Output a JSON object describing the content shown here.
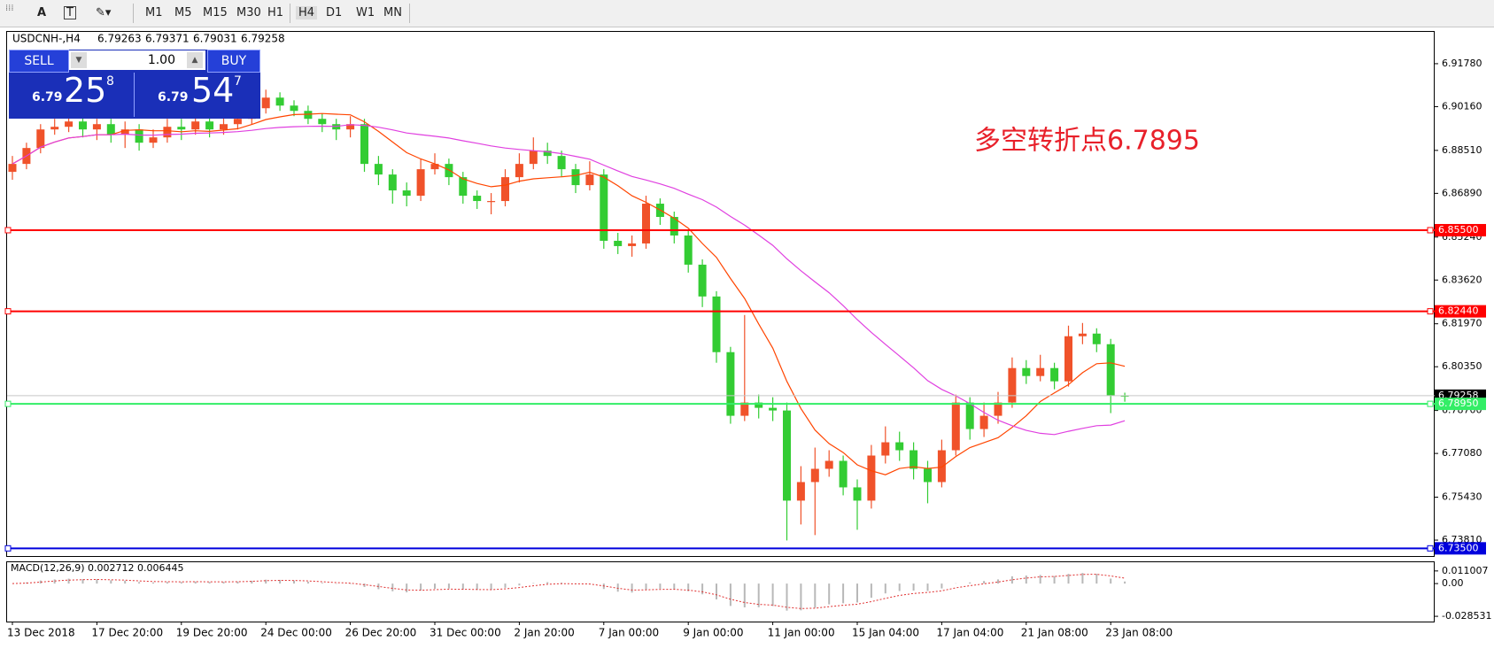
{
  "toolbar": {
    "items": [
      "A",
      "M1",
      "M5",
      "M15",
      "M30",
      "H1",
      "H4",
      "D1",
      "W1",
      "MN"
    ]
  },
  "trade_panel": {
    "sell": "SELL",
    "lots": "1.00",
    "buy": "BUY",
    "bid_big": "6.79",
    "bid_pips": "25",
    "bid_frac": "8",
    "ask_big": "6.79",
    "ask_pips": "54",
    "ask_frac": "7"
  },
  "chart_data": {
    "type": "candlestick",
    "title": "USDCNH-,H4",
    "annotation": "多空转折点6.7895",
    "up_color": "#f0522a",
    "down_color": "#33cc33",
    "fast_ma_color": "#ff4500",
    "slow_ma_color": "#e040e0",
    "categories": [
      "13 Dec 2018",
      null,
      null,
      null,
      null,
      null,
      "17 Dec 20:00",
      null,
      null,
      null,
      null,
      null,
      "19 Dec 20:00",
      null,
      null,
      null,
      null,
      null,
      "24 Dec 00:00",
      null,
      null,
      null,
      null,
      null,
      "26 Dec 20:00",
      null,
      null,
      null,
      null,
      null,
      "31 Dec 00:00",
      null,
      null,
      null,
      null,
      null,
      "2 Jan 20:00",
      null,
      null,
      null,
      null,
      null,
      "7 Jan 00:00",
      null,
      null,
      null,
      null,
      null,
      "9 Jan 00:00",
      null,
      null,
      null,
      null,
      null,
      "11 Jan 00:00",
      null,
      null,
      null,
      null,
      null,
      "15 Jan 04:00",
      null,
      null,
      null,
      null,
      null,
      "17 Jan 04:00",
      null,
      null,
      null,
      null,
      null,
      "21 Jan 08:00",
      null,
      null,
      null,
      null,
      null,
      "23 Jan 08:00",
      null
    ],
    "open": [
      6.877,
      6.88,
      6.886,
      6.893,
      6.894,
      6.896,
      6.893,
      6.895,
      6.891,
      6.893,
      6.888,
      6.89,
      6.894,
      6.893,
      6.896,
      6.893,
      6.895,
      6.897,
      6.901,
      6.905,
      6.902,
      6.9,
      6.897,
      6.895,
      6.893,
      6.895,
      6.88,
      6.876,
      6.87,
      6.868,
      6.878,
      6.88,
      6.875,
      6.868,
      6.866,
      6.866,
      6.875,
      6.88,
      6.885,
      6.883,
      6.878,
      6.872,
      6.876,
      6.851,
      6.849,
      6.85,
      6.865,
      6.86,
      6.853,
      6.842,
      6.83,
      6.809,
      6.785,
      6.79,
      6.788,
      6.787,
      6.753,
      6.76,
      6.765,
      6.768,
      6.758,
      6.753,
      6.77,
      6.775,
      6.772,
      6.765,
      6.76,
      6.772,
      6.79,
      6.78,
      6.785,
      6.79,
      6.803,
      6.8,
      6.803,
      6.798,
      6.815,
      6.816,
      6.812,
      6.79263
    ],
    "high": [
      6.883,
      6.888,
      6.895,
      6.897,
      6.898,
      6.898,
      6.897,
      6.897,
      6.896,
      6.895,
      6.893,
      6.897,
      6.897,
      6.899,
      6.898,
      6.898,
      6.9,
      6.904,
      6.908,
      6.907,
      6.904,
      6.902,
      6.899,
      6.897,
      6.898,
      6.897,
      6.883,
      6.878,
      6.873,
      6.882,
      6.884,
      6.882,
      6.877,
      6.87,
      6.869,
      6.878,
      6.884,
      6.89,
      6.888,
      6.885,
      6.88,
      6.881,
      6.878,
      6.854,
      6.853,
      6.868,
      6.867,
      6.862,
      6.855,
      6.844,
      6.832,
      6.811,
      6.823,
      6.793,
      6.792,
      6.79,
      6.766,
      6.773,
      6.772,
      6.77,
      6.761,
      6.774,
      6.781,
      6.779,
      6.775,
      6.768,
      6.776,
      6.793,
      6.792,
      6.79,
      6.794,
      6.807,
      6.806,
      6.808,
      6.805,
      6.819,
      6.82,
      6.818,
      6.814,
      6.79371
    ],
    "low": [
      6.874,
      6.878,
      6.884,
      6.891,
      6.892,
      6.89,
      6.889,
      6.888,
      6.886,
      6.885,
      6.886,
      6.888,
      6.889,
      6.891,
      6.89,
      6.891,
      6.893,
      6.895,
      6.899,
      6.9,
      6.898,
      6.895,
      6.892,
      6.889,
      6.89,
      6.877,
      6.872,
      6.865,
      6.864,
      6.866,
      6.876,
      6.872,
      6.865,
      6.863,
      6.861,
      6.864,
      6.873,
      6.878,
      6.88,
      6.875,
      6.869,
      6.87,
      6.848,
      6.846,
      6.845,
      6.848,
      6.857,
      6.85,
      6.839,
      6.826,
      6.805,
      6.782,
      6.783,
      6.784,
      6.783,
      6.738,
      6.744,
      6.74,
      6.762,
      6.755,
      6.742,
      6.75,
      6.767,
      6.768,
      6.761,
      6.752,
      6.758,
      6.77,
      6.776,
      6.777,
      6.782,
      6.788,
      6.797,
      6.798,
      6.795,
      6.796,
      6.812,
      6.809,
      6.786,
      6.79031
    ],
    "close": [
      6.88,
      6.886,
      6.893,
      6.894,
      6.896,
      6.893,
      6.895,
      6.891,
      6.893,
      6.888,
      6.89,
      6.894,
      6.893,
      6.896,
      6.893,
      6.895,
      6.897,
      6.901,
      6.905,
      6.902,
      6.9,
      6.897,
      6.895,
      6.893,
      6.895,
      6.88,
      6.876,
      6.87,
      6.868,
      6.878,
      6.88,
      6.875,
      6.868,
      6.866,
      6.866,
      6.875,
      6.88,
      6.885,
      6.883,
      6.878,
      6.872,
      6.876,
      6.851,
      6.849,
      6.85,
      6.865,
      6.86,
      6.853,
      6.842,
      6.83,
      6.809,
      6.785,
      6.79,
      6.788,
      6.787,
      6.753,
      6.76,
      6.765,
      6.768,
      6.758,
      6.753,
      6.77,
      6.775,
      6.772,
      6.765,
      6.76,
      6.772,
      6.79,
      6.78,
      6.785,
      6.79,
      6.803,
      6.8,
      6.803,
      6.798,
      6.815,
      6.816,
      6.812,
      6.79263,
      6.79258
    ],
    "ylim": [
      6.7321,
      6.9298
    ],
    "yticks": [
      {
        "value": 6.9178,
        "label": "6.91780"
      },
      {
        "value": 6.9016,
        "label": "6.90160"
      },
      {
        "value": 6.8851,
        "label": "6.88510"
      },
      {
        "value": 6.8689,
        "label": "6.86890"
      },
      {
        "value": 6.8524,
        "label": "6.85240"
      },
      {
        "value": 6.8362,
        "label": "6.83620"
      },
      {
        "value": 6.8197,
        "label": "6.81970"
      },
      {
        "value": 6.8035,
        "label": "6.80350"
      },
      {
        "value": 6.787,
        "label": "6.78700"
      },
      {
        "value": 6.7708,
        "label": "6.77080"
      },
      {
        "value": 6.7543,
        "label": "6.75430"
      },
      {
        "value": 6.7381,
        "label": "6.73810"
      }
    ],
    "hlines": [
      {
        "value": 6.855,
        "label": "6.85500",
        "color": "#ff0000"
      },
      {
        "value": 6.8244,
        "label": "6.82440",
        "color": "#ff0000"
      },
      {
        "value": 6.79258,
        "label": "6.79258",
        "color": "#000000"
      },
      {
        "value": 6.7895,
        "label": "6.78950",
        "color": "#33ee66"
      },
      {
        "value": 6.735,
        "label": "6.73500",
        "color": "#0000dd"
      }
    ],
    "macd_label": "MACD(12,26,9) 0.002712 0.006445",
    "macd_ylim": [
      -0.0331,
      0.0186
    ],
    "macd_yticks": [
      0.011007,
      {
        "value": 0,
        "label": "0.00"
      },
      -0.028531
    ]
  }
}
